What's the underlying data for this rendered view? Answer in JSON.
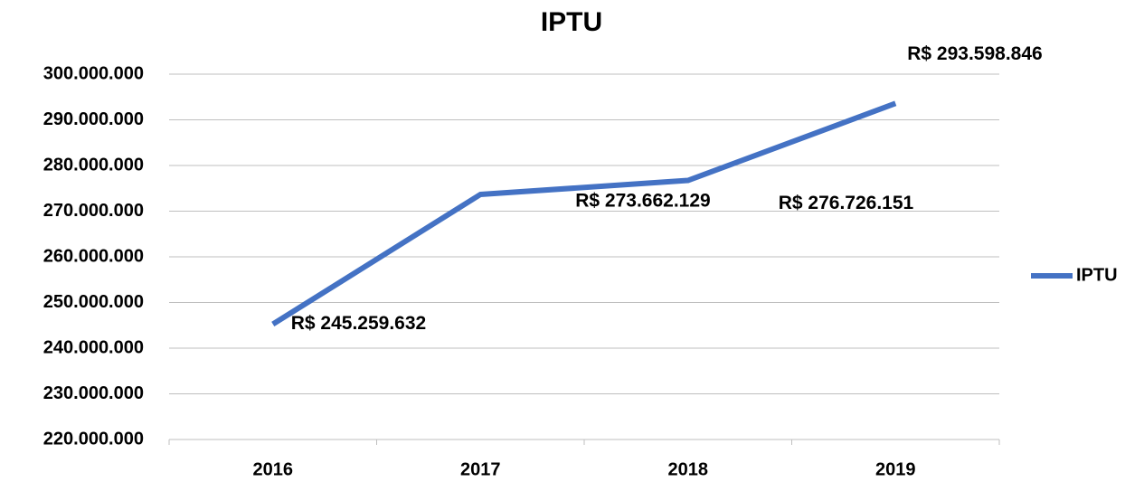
{
  "chart_data": {
    "type": "line",
    "title": "IPTU",
    "categories": [
      "2016",
      "2017",
      "2018",
      "2019"
    ],
    "series": [
      {
        "name": "IPTU",
        "color": "#4472c4",
        "values": [
          245259632,
          273662129,
          276726151,
          293598846
        ],
        "value_labels": [
          "R$ 245.259.632",
          "R$ 273.662.129",
          "R$ 276.726.151",
          "R$ 293.598.846"
        ]
      }
    ],
    "ylim": [
      220000000,
      300000000
    ],
    "yticks": [
      {
        "value": 220000000,
        "label": "220.000.000"
      },
      {
        "value": 230000000,
        "label": "230.000.000"
      },
      {
        "value": 240000000,
        "label": "240.000.000"
      },
      {
        "value": 250000000,
        "label": "250.000.000"
      },
      {
        "value": 260000000,
        "label": "260.000.000"
      },
      {
        "value": 270000000,
        "label": "270.000.000"
      },
      {
        "value": 280000000,
        "label": "280.000.000"
      },
      {
        "value": 290000000,
        "label": "290.000.000"
      },
      {
        "value": 300000000,
        "label": "300.000.000"
      }
    ],
    "grid": true,
    "legend": "right"
  }
}
